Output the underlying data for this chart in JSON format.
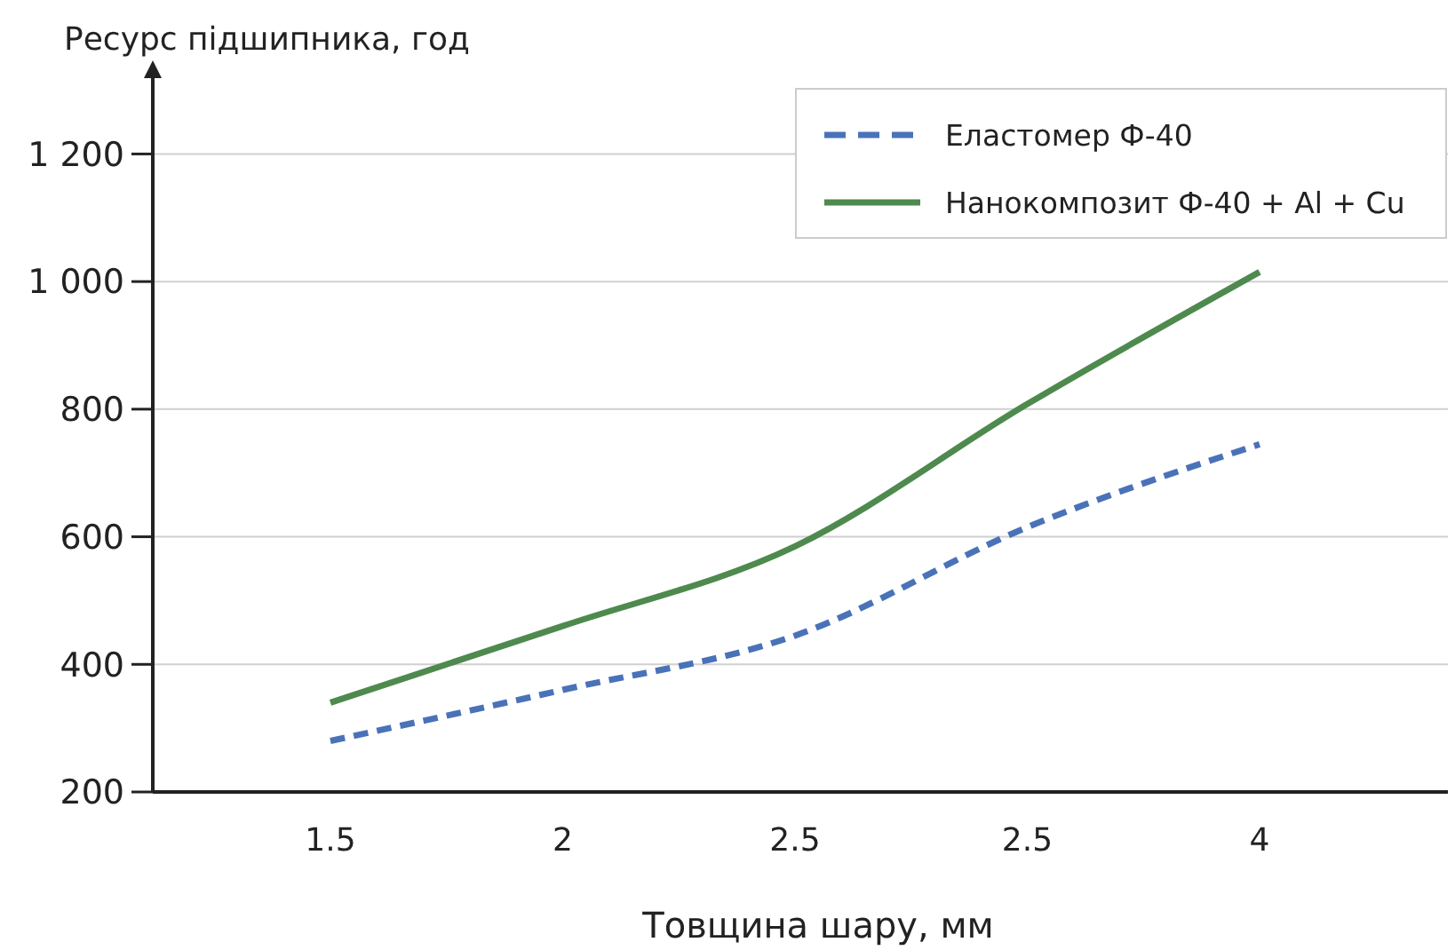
{
  "chart_data": {
    "type": "line",
    "ylabel": "Ресурс підшипника, год",
    "xlabel": "Товщина шару, мм",
    "categories": [
      "1.5",
      "2",
      "2.5",
      "2.5",
      "4"
    ],
    "ylim": [
      200,
      1330
    ],
    "yticks": [
      {
        "value": 200,
        "label": "200"
      },
      {
        "value": 400,
        "label": "400"
      },
      {
        "value": 600,
        "label": "600"
      },
      {
        "value": 800,
        "label": "800"
      },
      {
        "value": 1000,
        "label": "1 000"
      },
      {
        "value": 1200,
        "label": "1 200"
      }
    ],
    "grid": "y",
    "legend": "top right",
    "series": [
      {
        "name": "Еластомер Ф-40",
        "color": "#4a72b8",
        "line_style": "dashed",
        "values": [
          280,
          360,
          445,
          615,
          745
        ]
      },
      {
        "name": "Нанокомпозит Ф-40 + Al + Cu",
        "color": "#4e8a4e",
        "line_style": "solid",
        "values": [
          340,
          460,
          585,
          808,
          1015
        ]
      }
    ]
  }
}
